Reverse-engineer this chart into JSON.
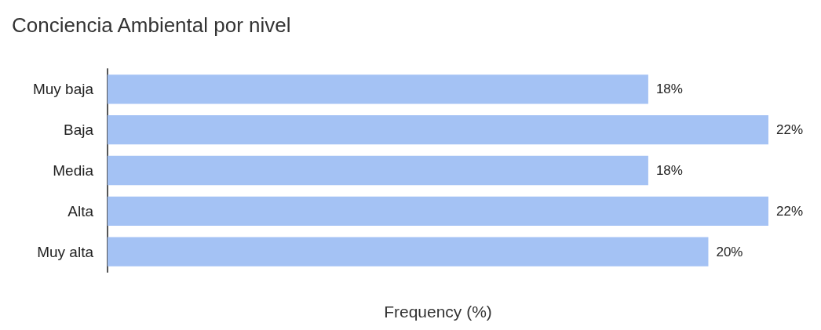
{
  "chart_data": {
    "type": "bar",
    "orientation": "horizontal",
    "title": "Conciencia Ambiental por nivel",
    "xlabel": "Frequency (%)",
    "categories": [
      "Muy baja",
      "Baja",
      "Media",
      "Alta",
      "Muy alta"
    ],
    "values": [
      18,
      22,
      18,
      22,
      20
    ],
    "value_labels": [
      "18%",
      "22%",
      "18%",
      "22%",
      "20%"
    ],
    "color": "#a4c2f4"
  }
}
